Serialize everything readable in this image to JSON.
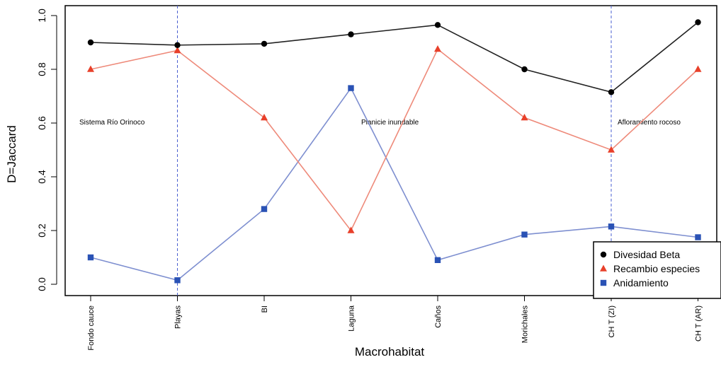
{
  "chart_data": {
    "type": "line",
    "xlabel": "Macrohabitat",
    "ylabel": "D=Jaccard",
    "ylim": [
      0,
      1.0
    ],
    "yticks": [
      "0.0",
      "0.2",
      "0.4",
      "0.6",
      "0.8",
      "1.0"
    ],
    "categories": [
      "Fondo cauce",
      "Playas",
      "BI",
      "Laguna",
      "Caños",
      "Morichales",
      "CH T (ZI)",
      "CH T (AR)"
    ],
    "series": [
      {
        "name": "Divesidad Beta",
        "marker": "circle",
        "color": "#000000",
        "values": [
          0.9,
          0.89,
          0.895,
          0.93,
          0.965,
          0.8,
          0.715,
          0.975
        ]
      },
      {
        "name": "Recambio especies",
        "marker": "triangle",
        "color": "#e8402a",
        "values": [
          0.8,
          0.87,
          0.62,
          0.2,
          0.875,
          0.62,
          0.5,
          0.8
        ]
      },
      {
        "name": "Anidamiento",
        "marker": "square",
        "color": "#2a52b5",
        "values": [
          0.1,
          0.015,
          0.28,
          0.73,
          0.09,
          0.185,
          0.215,
          0.175
        ]
      }
    ],
    "vlines_at_categories": [
      "Playas",
      "CH T (ZI)"
    ],
    "annotations": [
      "Sistema Río Orinoco",
      "Planicie inundable",
      "Afloramiento rocoso"
    ],
    "legend_position": "bottom-right",
    "grid": false
  }
}
